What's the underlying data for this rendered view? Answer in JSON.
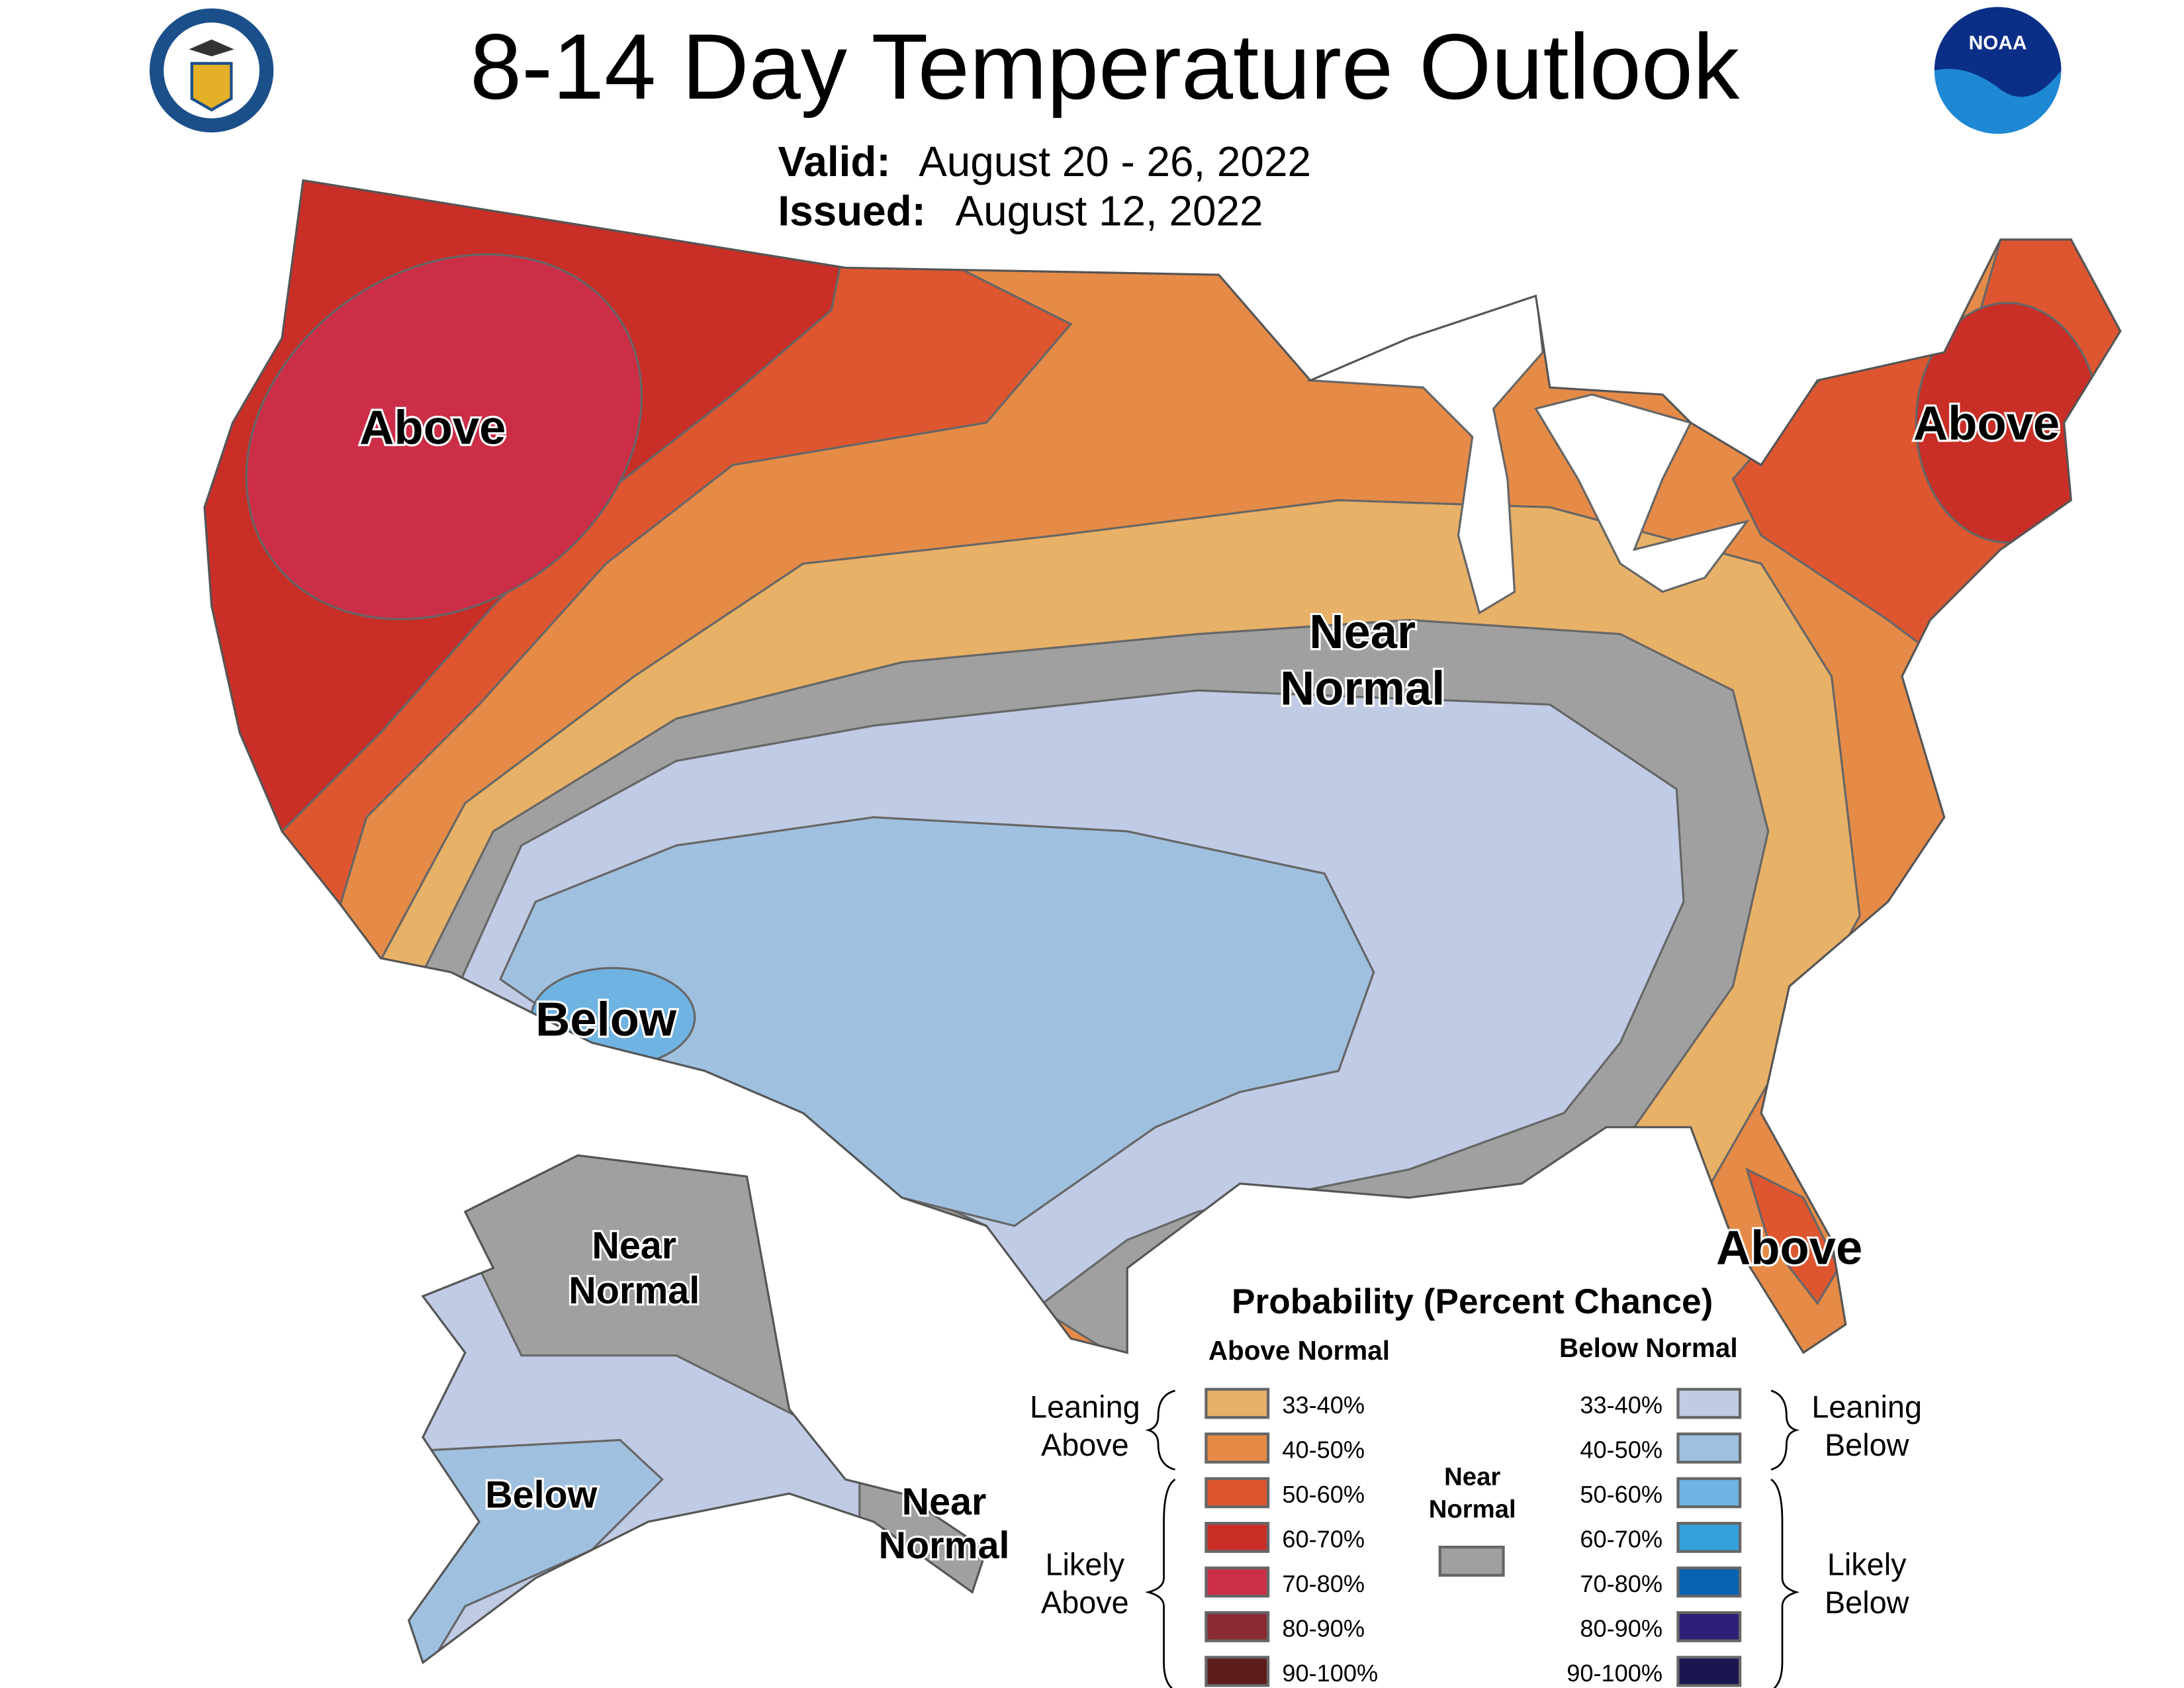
{
  "header": {
    "title": "8-14 Day Temperature Outlook",
    "valid_label": "Valid:",
    "valid_value": "August 20 - 26, 2022",
    "issued_label": "Issued:",
    "issued_value": "August 12, 2022",
    "left_logo": "Department of Commerce seal",
    "right_logo_text": "NOAA"
  },
  "map_labels": {
    "west_above": "Above",
    "northeast_above": "Above",
    "florida_above": "Above",
    "central_near": "Near",
    "central_normal": "Normal",
    "southwest_below": "Below",
    "alaska_near": "Near",
    "alaska_normal": "Normal",
    "alaska_below": "Below",
    "panhandle_near": "Near",
    "panhandle_normal": "Normal"
  },
  "legend": {
    "title": "Probability (Percent Chance)",
    "above_header": "Above Normal",
    "below_header": "Below Normal",
    "leaning_above": [
      "Leaning",
      "Above"
    ],
    "likely_above": [
      "Likely",
      "Above"
    ],
    "leaning_below": [
      "Leaning",
      "Below"
    ],
    "likely_below": [
      "Likely",
      "Below"
    ],
    "near_normal": [
      "Near",
      "Normal"
    ],
    "near_normal_color": "#a0a0a0",
    "above": [
      {
        "range": "33-40%",
        "color": "#e8b168"
      },
      {
        "range": "40-50%",
        "color": "#e58b47"
      },
      {
        "range": "50-60%",
        "color": "#de5630"
      },
      {
        "range": "60-70%",
        "color": "#c92e27"
      },
      {
        "range": "70-80%",
        "color": "#cc2d47"
      },
      {
        "range": "80-90%",
        "color": "#8a2a33"
      },
      {
        "range": "90-100%",
        "color": "#5e1c1c"
      }
    ],
    "below": [
      {
        "range": "33-40%",
        "color": "#c0cbe5"
      },
      {
        "range": "40-50%",
        "color": "#a0c0df"
      },
      {
        "range": "50-60%",
        "color": "#6fb3e3"
      },
      {
        "range": "60-70%",
        "color": "#33a0dc"
      },
      {
        "range": "70-80%",
        "color": "#0763b0"
      },
      {
        "range": "80-90%",
        "color": "#2e1f78"
      },
      {
        "range": "90-100%",
        "color": "#1a1650"
      }
    ]
  }
}
